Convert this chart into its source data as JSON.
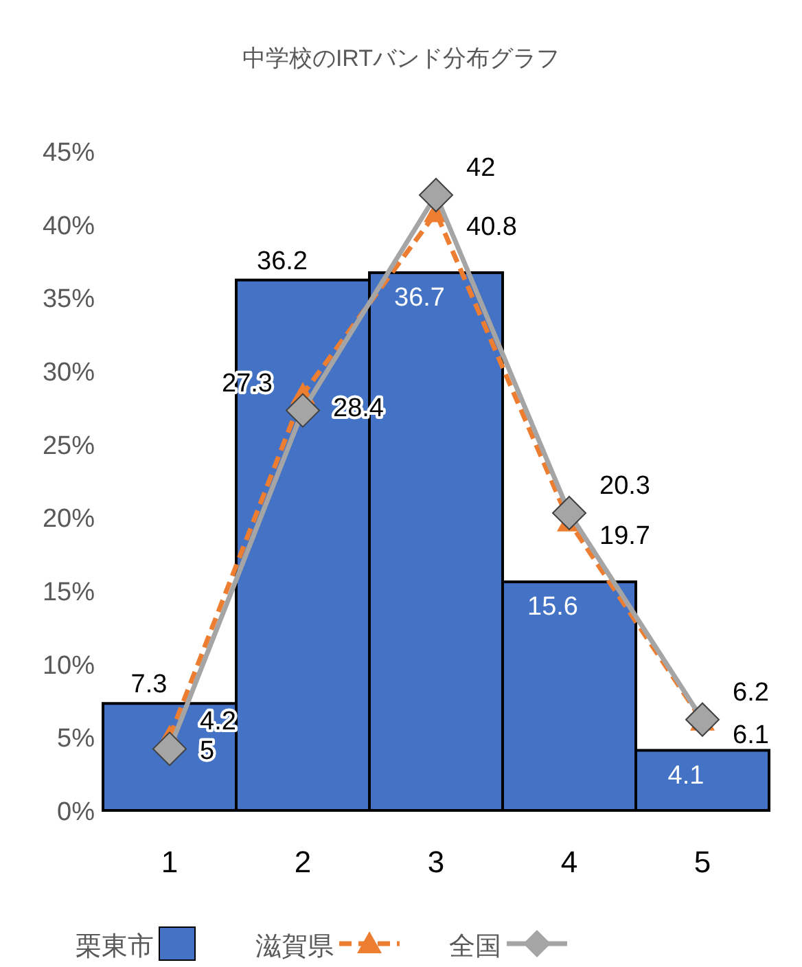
{
  "chart_data": {
    "type": "bar",
    "title": "中学校のIRTバンド分布グラフ",
    "categories": [
      "1",
      "2",
      "3",
      "4",
      "5"
    ],
    "series": [
      {
        "name": "栗東市",
        "color": "#4472c4",
        "values": [
          7.3,
          36.2,
          36.7,
          15.6,
          4.1
        ]
      },
      {
        "name": "滋賀県",
        "type": "line",
        "color": "#ed7d31",
        "marker": "triangle",
        "line_style": "dashed",
        "values": [
          5,
          28.4,
          40.8,
          19.7,
          6.1
        ]
      },
      {
        "name": "全国",
        "type": "line",
        "color": "#a5a5a5",
        "marker": "diamond",
        "line_style": "solid",
        "values": [
          4.2,
          27.3,
          42,
          20.3,
          6.2
        ]
      }
    ],
    "ylim": [
      0,
      45
    ],
    "yticks": [
      {
        "value": 0,
        "label": "0%"
      },
      {
        "value": 5,
        "label": "5%"
      },
      {
        "value": 10,
        "label": "10%"
      },
      {
        "value": 15,
        "label": "15%"
      },
      {
        "value": 20,
        "label": "20%"
      },
      {
        "value": 25,
        "label": "25%"
      },
      {
        "value": 30,
        "label": "30%"
      },
      {
        "value": 35,
        "label": "35%"
      },
      {
        "value": 40,
        "label": "40%"
      },
      {
        "value": 45,
        "label": "45%"
      }
    ],
    "grid": false,
    "legend": "bottom",
    "data_labels": true
  }
}
